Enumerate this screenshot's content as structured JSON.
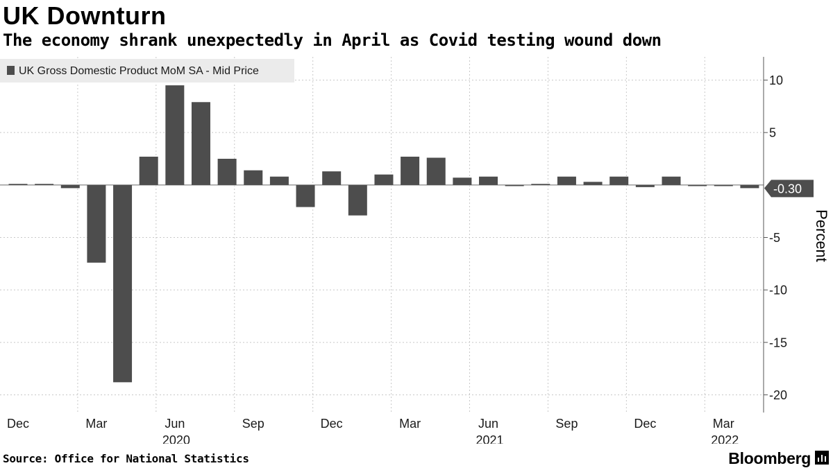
{
  "header": {
    "title": "UK Downturn",
    "subtitle": "The economy shrank unexpectedly in April as Covid testing wound down"
  },
  "footer": {
    "source": "Source: Office for National Statistics",
    "brand": "Bloomberg"
  },
  "chart_data": {
    "type": "bar",
    "title": "UK Downturn",
    "subtitle": "The economy shrank unexpectedly in April as Covid testing wound down",
    "legend": {
      "label": "UK Gross Domestic Product MoM SA - Mid Price",
      "placement": "top-left"
    },
    "ylabel": "Percent",
    "ylim": [
      -21,
      10.5
    ],
    "yticks": [
      10,
      5,
      -5,
      -10,
      -15,
      -20
    ],
    "grid": true,
    "bar_color": "#4d4d4d",
    "categories": [
      "Dec 2019",
      "Jan 2020",
      "Feb 2020",
      "Mar 2020",
      "Apr 2020",
      "May 2020",
      "Jun 2020",
      "Jul 2020",
      "Aug 2020",
      "Sep 2020",
      "Oct 2020",
      "Nov 2020",
      "Dec 2020",
      "Jan 2021",
      "Feb 2021",
      "Mar 2021",
      "Apr 2021",
      "May 2021",
      "Jun 2021",
      "Jul 2021",
      "Aug 2021",
      "Sep 2021",
      "Oct 2021",
      "Nov 2021",
      "Dec 2021",
      "Jan 2022",
      "Feb 2022",
      "Mar 2022",
      "Apr 2022"
    ],
    "values": [
      0.1,
      0.1,
      -0.3,
      -7.4,
      -18.8,
      2.7,
      9.5,
      7.9,
      2.5,
      1.4,
      0.8,
      -2.1,
      1.3,
      -2.9,
      1.0,
      2.7,
      2.6,
      0.7,
      0.8,
      -0.1,
      0.1,
      0.8,
      0.3,
      0.8,
      -0.2,
      0.8,
      -0.05,
      -0.05,
      -0.3
    ],
    "x_tick_labels": [
      {
        "index": 0,
        "label": "Dec"
      },
      {
        "index": 3,
        "label": "Mar"
      },
      {
        "index": 6,
        "label": "Jun",
        "year": "2020"
      },
      {
        "index": 9,
        "label": "Sep"
      },
      {
        "index": 12,
        "label": "Dec"
      },
      {
        "index": 15,
        "label": "Mar"
      },
      {
        "index": 18,
        "label": "Jun",
        "year": "2021"
      },
      {
        "index": 21,
        "label": "Sep"
      },
      {
        "index": 24,
        "label": "Dec"
      },
      {
        "index": 27,
        "label": "Mar",
        "year": "2022"
      }
    ],
    "last_value_label": "-0.30"
  }
}
